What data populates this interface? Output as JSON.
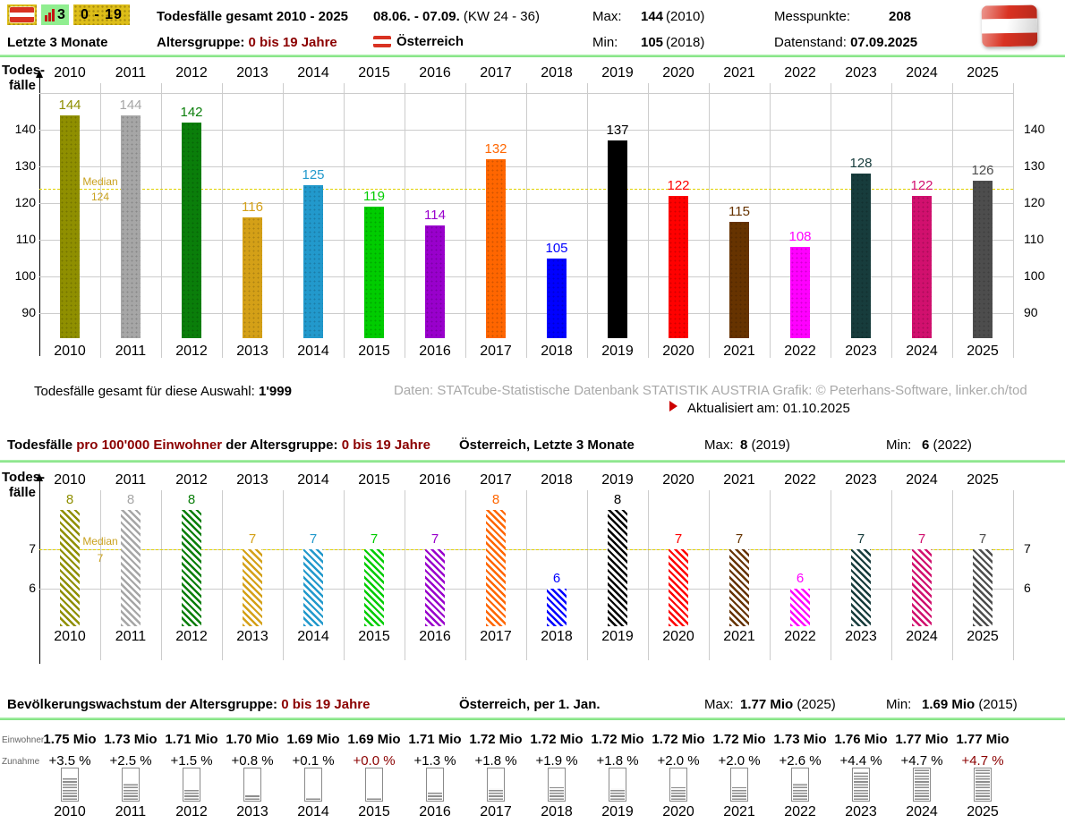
{
  "header": {
    "chart_tile_count": "3",
    "age_tile": "0 - 19",
    "title": "Todesfälle gesamt 2010 - 2025",
    "period": "08.06. - 07.09.",
    "period_weeks": "(KW 24 - 36)",
    "max_label": "Max:",
    "max_value": "144",
    "max_year": "(2010)",
    "messpunkte_label": "Messpunkte:",
    "messpunkte_value": "208",
    "range_label": "Letzte 3 Monate",
    "agegroup_label": "Altersgruppe:",
    "agegroup_value": "0 bis 19 Jahre",
    "country": "Österreich",
    "min_label": "Min:",
    "min_value": "105",
    "min_year": "(2018)",
    "datenstand_label": "Datenstand:",
    "datenstand_value": "07.09.2025"
  },
  "footer1": {
    "total_label": "Todesfälle gesamt für diese Auswahl:",
    "total_value": "1'999",
    "credits": "Daten: STATcube-Statistische Datenbank STATISTIK AUSTRIA  Grafik: © Peterhans-Software, linker.ch/tod",
    "updated_label": "Aktualisiert am:",
    "updated_value": "01.10.2025"
  },
  "section2": {
    "title_black1": "Todesfälle",
    "title_red1": "pro 100'000 Einwohner",
    "title_black2": "der Altersgruppe:",
    "title_red2": "0 bis 19 Jahre",
    "subtitle": "Österreich, Letzte 3 Monate",
    "max_label": "Max:",
    "max_value": "8",
    "max_year": "(2019)",
    "min_label": "Min:",
    "min_value": "6",
    "min_year": "(2022)"
  },
  "section3": {
    "title_black": "Bevölkerungswachstum der Altersgruppe:",
    "title_red": "0 bis 19 Jahre",
    "subtitle": "Österreich, per 1. Jan.",
    "max_label": "Max:",
    "max_value": "1.77 Mio",
    "max_year": "(2025)",
    "min_label": "Min:",
    "min_value": "1.69 Mio",
    "min_year": "(2015)",
    "row_label_einwohner": "Einwohner",
    "row_label_zunahme": "Zunahme"
  },
  "colors": {
    "accent_green_line": "#90EE90",
    "dark_red": "#8B0000",
    "median_line": "#E0D200",
    "median_text": "#C9A11E",
    "grid": "#CCCCCC",
    "credits_gray": "#A9A9A9",
    "gauge_border": "#8A8A8A",
    "gauge_stripe": "#8E8E8E"
  },
  "chart_data": [
    {
      "type": "bar",
      "title": "Todesfälle gesamt 2010 - 2025",
      "ylabel": "Todes-fälle",
      "categories": [
        "2010",
        "2011",
        "2012",
        "2013",
        "2014",
        "2015",
        "2016",
        "2017",
        "2018",
        "2019",
        "2020",
        "2021",
        "2022",
        "2023",
        "2024",
        "2025"
      ],
      "values": [
        144,
        144,
        142,
        116,
        125,
        119,
        114,
        132,
        105,
        137,
        122,
        115,
        108,
        128,
        122,
        126
      ],
      "colors": [
        "#8F8F00",
        "#A6A6A6",
        "#0A7E0A",
        "#D4A017",
        "#2299CC",
        "#00CC00",
        "#9900CC",
        "#FF6600",
        "#0000FF",
        "#000000",
        "#FF0000",
        "#663300",
        "#FF00FF",
        "#173C3C",
        "#D1106E",
        "#4D4D4D"
      ],
      "median": 124,
      "median_label": "Median",
      "yticks": [
        140,
        130,
        120,
        110,
        100,
        90
      ],
      "ylim": [
        83,
        150.5
      ],
      "grid": true,
      "legend": "none"
    },
    {
      "type": "bar",
      "hatched": true,
      "title": "Todesfälle pro 100'000 Einwohner der Altersgruppe: 0 bis 19 Jahre",
      "ylabel": "Todes-fälle",
      "categories": [
        "2010",
        "2011",
        "2012",
        "2013",
        "2014",
        "2015",
        "2016",
        "2017",
        "2018",
        "2019",
        "2020",
        "2021",
        "2022",
        "2023",
        "2024",
        "2025"
      ],
      "values": [
        8,
        8,
        8,
        7,
        7,
        7,
        7,
        8,
        6,
        8,
        7,
        7,
        6,
        7,
        7,
        7
      ],
      "colors": [
        "#8F8F00",
        "#A6A6A6",
        "#0A7E0A",
        "#D4A017",
        "#2299CC",
        "#00CC00",
        "#9900CC",
        "#FF6600",
        "#0000FF",
        "#000000",
        "#FF0000",
        "#663300",
        "#FF00FF",
        "#173C3C",
        "#D1106E",
        "#4D4D4D"
      ],
      "median": 7,
      "median_label": "Median",
      "yticks": [
        7,
        6
      ],
      "ylim": [
        5,
        8.5
      ],
      "grid": true,
      "legend": "none"
    },
    {
      "type": "table",
      "title": "Bevölkerungswachstum der Altersgruppe: 0 bis 19 Jahre",
      "categories": [
        "2010",
        "2011",
        "2012",
        "2013",
        "2014",
        "2015",
        "2016",
        "2017",
        "2018",
        "2019",
        "2020",
        "2021",
        "2022",
        "2023",
        "2024",
        "2025"
      ],
      "einwohner": [
        "1.75 Mio",
        "1.73 Mio",
        "1.71 Mio",
        "1.70 Mio",
        "1.69 Mio",
        "1.69 Mio",
        "1.71 Mio",
        "1.72 Mio",
        "1.72 Mio",
        "1.72 Mio",
        "1.72 Mio",
        "1.72 Mio",
        "1.73 Mio",
        "1.76 Mio",
        "1.77 Mio",
        "1.77 Mio"
      ],
      "zunahme": [
        "+3.5 %",
        "+2.5 %",
        "+1.5 %",
        "+0.8 %",
        "+0.1 %",
        "+0.0 %",
        "+1.3 %",
        "+1.8 %",
        "+1.9 %",
        "+1.8 %",
        "+2.0 %",
        "+2.0 %",
        "+2.6 %",
        "+4.4 %",
        "+4.7 %",
        "+4.7 %"
      ],
      "zunahme_pct": [
        3.5,
        2.5,
        1.5,
        0.8,
        0.1,
        0.0,
        1.3,
        1.8,
        1.9,
        1.8,
        2.0,
        2.0,
        2.6,
        4.4,
        4.7,
        4.7
      ],
      "highlight_indices": [
        5,
        15
      ]
    }
  ]
}
